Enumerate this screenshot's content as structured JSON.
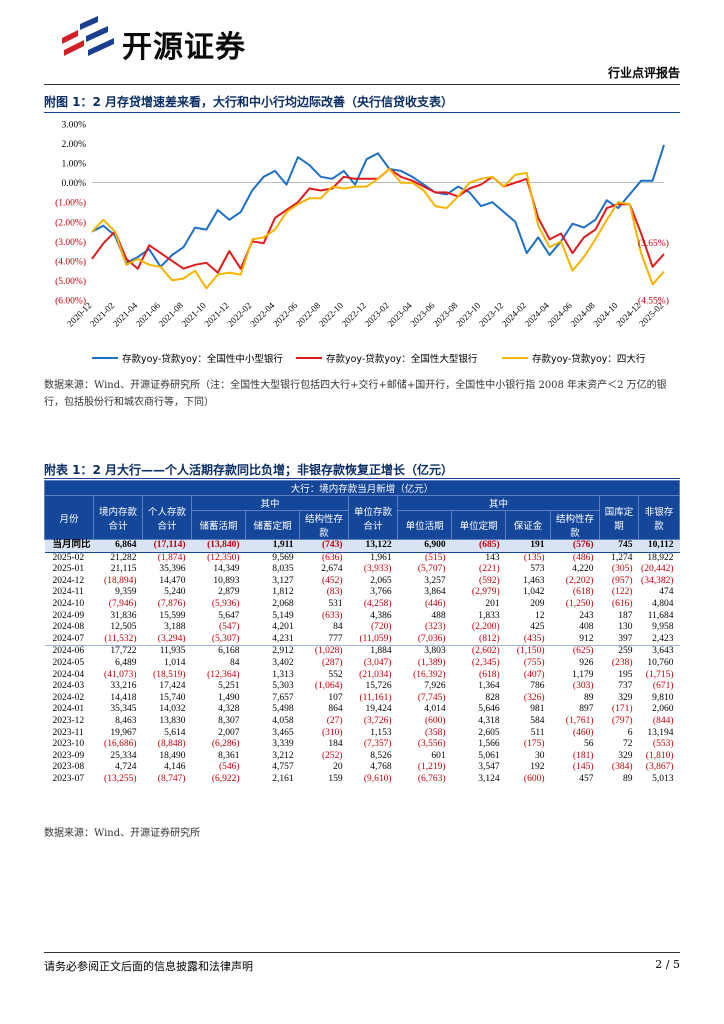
{
  "header": {
    "logo_text": "开源证券",
    "report_type": "行业点评报告"
  },
  "figure1": {
    "title": "附图 1：2 月存贷增速差来看，大行和中小行均边际改善（央行信贷收支表）",
    "source": "数据来源：Wind、开源证券研究所（注：全国性大型银行包括四大行+交行+邮储+国开行，全国性中小银行指 2008 年末资产＜2 万亿的银行，包括股份行和城农商行等，下同）"
  },
  "chart_data": {
    "type": "line",
    "title": "",
    "ylim": [
      -6,
      3
    ],
    "yticks": [
      "3.00%",
      "2.00%",
      "1.00%",
      "0.00%",
      "(1.00%)",
      "(2.00%)",
      "(3.00%)",
      "(4.00%)",
      "(5.00%)",
      "(6.00%)"
    ],
    "xticks": [
      "2020-12",
      "2021-02",
      "2021-04",
      "2021-06",
      "2021-08",
      "2021-10",
      "2021-12",
      "2022-02",
      "2022-04",
      "2022-06",
      "2022-08",
      "2022-10",
      "2022-12",
      "2023-02",
      "2023-04",
      "2023-06",
      "2023-08",
      "2023-10",
      "2023-12",
      "2024-02",
      "2024-04",
      "2024-06",
      "2024-08",
      "2024-10",
      "2024-12",
      "2025-02"
    ],
    "annotations": [
      "1.93%",
      "(3.65%)",
      "(4.55%)"
    ],
    "series": [
      {
        "name": "存款yoy-贷款yoy：全国性中小型银行",
        "color": "#1f6fc5",
        "values": [
          -2.5,
          -2.2,
          -2.7,
          -4.1,
          -3.8,
          -3.4,
          -4.3,
          -3.7,
          -3.3,
          -2.3,
          -2.4,
          -1.4,
          -1.9,
          -1.5,
          -0.4,
          0.3,
          0.6,
          -0.1,
          1.3,
          0.9,
          0.3,
          0.2,
          0.6,
          -0.1,
          1.2,
          1.5,
          0.7,
          0.6,
          0.3,
          -0.1,
          -0.5,
          -0.6,
          -0.2,
          -0.5,
          -1.2,
          -1.0,
          -1.5,
          -2.0,
          -3.6,
          -2.8,
          -3.7,
          -3.0,
          -2.1,
          -2.3,
          -1.9,
          -0.9,
          -1.3,
          -0.6,
          0.1,
          0.1,
          1.93
        ]
      },
      {
        "name": "存款yoy-贷款yoy：全国性大型银行",
        "color": "#e31a1c",
        "values": [
          -3.9,
          -3.1,
          -2.5,
          -3.9,
          -4.4,
          -3.2,
          -3.6,
          -4.0,
          -4.4,
          -4.2,
          -4.1,
          -4.6,
          -3.5,
          -4.4,
          -3.0,
          -3.1,
          -1.8,
          -1.4,
          -1.0,
          -0.3,
          -0.4,
          -0.3,
          0.3,
          0.2,
          0.2,
          0.2,
          0.7,
          0.3,
          0.1,
          -0.2,
          -0.5,
          -0.5,
          -0.7,
          -0.3,
          -0.1,
          0.3,
          -0.2,
          0.0,
          0.2,
          -1.8,
          -2.9,
          -2.6,
          -3.6,
          -2.8,
          -2.4,
          -1.3,
          -1.1,
          -1.1,
          -2.6,
          -4.3,
          -3.65
        ]
      },
      {
        "name": "存款yoy-贷款yoy：四大行",
        "color": "#f4b400",
        "values": [
          -2.5,
          -1.9,
          -2.5,
          -4.2,
          -3.9,
          -4.2,
          -4.3,
          -5.0,
          -4.9,
          -4.5,
          -5.4,
          -4.7,
          -4.6,
          -4.7,
          -2.9,
          -2.8,
          -2.4,
          -1.5,
          -1.1,
          -0.8,
          -0.8,
          -0.2,
          -0.3,
          -0.2,
          -0.2,
          0.2,
          0.7,
          0.0,
          0.0,
          -0.4,
          -1.2,
          -1.3,
          -0.7,
          0.0,
          0.2,
          0.3,
          -0.2,
          0.4,
          0.5,
          -2.2,
          -3.3,
          -3.0,
          -4.5,
          -3.8,
          -2.9,
          -1.9,
          -1.0,
          -1.1,
          -3.6,
          -5.2,
          -4.55
        ]
      }
    ]
  },
  "appendix": {
    "title": "附表 1：2 月大行——个人活期存款同比负增；非银存款恢复正增长（亿元）",
    "group_header": "大行：境内存款当月新增（亿元）",
    "col_month": "月份",
    "col_domestic": "境内存款合计",
    "col_personal": "个人存款合计",
    "col_among": "其中",
    "col_demand": "储蓄活期",
    "col_time": "储蓄定期",
    "col_structured1": "结构性存款",
    "col_unit": "单位存款合计",
    "col_among2": "其中",
    "col_unit_demand": "单位活期",
    "col_unit_time": "单位定期",
    "col_margin": "保证金",
    "col_structured2": "结构性存款",
    "col_treasury": "国库定期",
    "col_nonbank": "非银存款",
    "yoy_row": [
      "当月同比",
      "6,864",
      "(17,114)",
      "(13,840)",
      "1,911",
      "(743)",
      "13,122",
      "6,900",
      "(685)",
      "191",
      "(576)",
      "745",
      "10,112"
    ],
    "rows": [
      [
        "2025-02",
        "21,282",
        "(1,874)",
        "(12,350)",
        "9,569",
        "(636)",
        "1,961",
        "(515)",
        "143",
        "(135)",
        "(486)",
        "1,274",
        "18,922"
      ],
      [
        "2025-01",
        "21,115",
        "35,396",
        "14,349",
        "8,035",
        "2,674",
        "(3,933)",
        "(5,707)",
        "(221)",
        "573",
        "4,220",
        "(305)",
        "(20,442)"
      ],
      [
        "2024-12",
        "(18,894)",
        "14,470",
        "10,893",
        "3,127",
        "(452)",
        "2,065",
        "3,257",
        "(592)",
        "1,463",
        "(2,202)",
        "(957)",
        "(34,382)"
      ],
      [
        "2024-11",
        "9,359",
        "5,240",
        "2,879",
        "1,812",
        "(83)",
        "3,766",
        "3,864",
        "(2,979)",
        "1,042",
        "(618)",
        "(122)",
        "474"
      ],
      [
        "2024-10",
        "(7,946)",
        "(7,876)",
        "(5,936)",
        "2,068",
        "531",
        "(4,258)",
        "(446)",
        "201",
        "209",
        "(1,250)",
        "(616)",
        "4,804"
      ],
      [
        "2024-09",
        "31,836",
        "15,599",
        "5,647",
        "5,149",
        "(633)",
        "4,386",
        "488",
        "1,833",
        "12",
        "243",
        "187",
        "11,684"
      ],
      [
        "2024-08",
        "12,505",
        "3,188",
        "(547)",
        "4,201",
        "84",
        "(720)",
        "(323)",
        "(2,200)",
        "425",
        "408",
        "130",
        "9,958"
      ],
      [
        "2024-07",
        "(11,532)",
        "(3,294)",
        "(5,307)",
        "4,231",
        "777",
        "(11,059)",
        "(7,036)",
        "(812)",
        "(435)",
        "912",
        "397",
        "2,423"
      ],
      [
        "2024-06",
        "17,722",
        "11,935",
        "6,168",
        "2,912",
        "(1,028)",
        "1,884",
        "3,803",
        "(2,602)",
        "(1,150)",
        "(625)",
        "259",
        "3,643"
      ],
      [
        "2024-05",
        "6,489",
        "1,014",
        "84",
        "3,402",
        "(287)",
        "(3,047)",
        "(1,389)",
        "(2,345)",
        "(755)",
        "926",
        "(238)",
        "10,760"
      ],
      [
        "2024-04",
        "(41,073)",
        "(18,519)",
        "(12,364)",
        "1,313",
        "552",
        "(21,034)",
        "(16,392)",
        "(618)",
        "(407)",
        "1,179",
        "195",
        "(1,715)"
      ],
      [
        "2024-03",
        "33,216",
        "17,424",
        "5,251",
        "5,303",
        "(1,064)",
        "15,726",
        "7,926",
        "1,364",
        "786",
        "(303)",
        "737",
        "(671)"
      ],
      [
        "2024-02",
        "14,418",
        "15,740",
        "1,490",
        "7,657",
        "107",
        "(11,161)",
        "(7,745)",
        "828",
        "(326)",
        "89",
        "329",
        "9,810"
      ],
      [
        "2024-01",
        "35,345",
        "14,032",
        "4,328",
        "5,498",
        "864",
        "19,424",
        "4,014",
        "5,646",
        "981",
        "897",
        "(171)",
        "2,060"
      ],
      [
        "2023-12",
        "8,463",
        "13,830",
        "8,307",
        "4,058",
        "(27)",
        "(3,726)",
        "(600)",
        "4,318",
        "584",
        "(1,761)",
        "(797)",
        "(844)"
      ],
      [
        "2023-11",
        "19,967",
        "5,614",
        "2,007",
        "3,465",
        "(310)",
        "1,153",
        "(358)",
        "2,605",
        "511",
        "(460)",
        "6",
        "13,194"
      ],
      [
        "2023-10",
        "(16,686)",
        "(8,848)",
        "(6,286)",
        "3,339",
        "184",
        "(7,357)",
        "(3,556)",
        "1,566",
        "(175)",
        "56",
        "72",
        "(553)"
      ],
      [
        "2023-09",
        "25,334",
        "18,490",
        "8,361",
        "3,212",
        "(252)",
        "8,526",
        "601",
        "5,061",
        "30",
        "(181)",
        "329",
        "(1,810)"
      ],
      [
        "2023-08",
        "4,724",
        "4,146",
        "(546)",
        "4,757",
        "20",
        "4,768",
        "(1,219)",
        "3,547",
        "192",
        "(145)",
        "(384)",
        "(3,867)"
      ],
      [
        "2023-07",
        "(13,255)",
        "(8,747)",
        "(6,922)",
        "2,161",
        "159",
        "(9,610)",
        "(6,763)",
        "3,124",
        "(600)",
        "457",
        "89",
        "5,013"
      ]
    ],
    "source": "数据来源：Wind、开源证券研究所"
  },
  "footer": {
    "note": "请务必参阅正文后面的信息披露和法律声明",
    "page": "2 / 5"
  }
}
